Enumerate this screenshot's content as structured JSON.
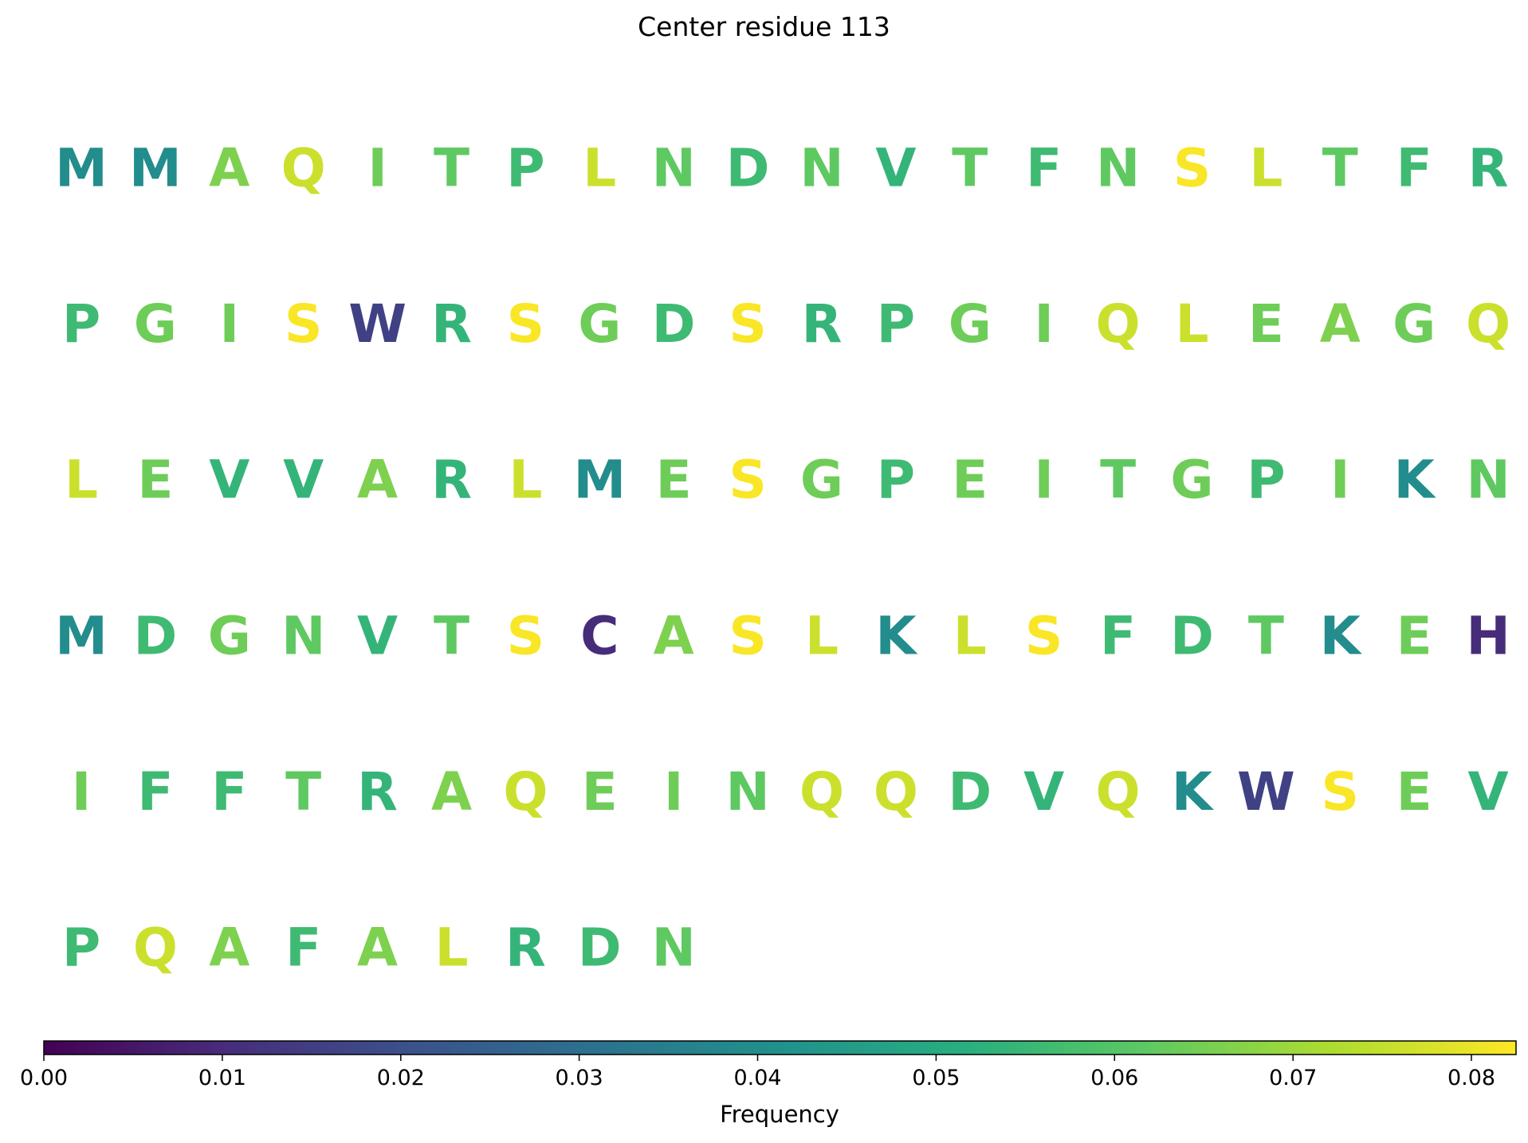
{
  "chart_data": {
    "type": "heatmap",
    "title": "Center residue 113",
    "letters": [
      {
        "letter": "M",
        "value": 0.04
      },
      {
        "letter": "M",
        "value": 0.04
      },
      {
        "letter": "A",
        "value": 0.066
      },
      {
        "letter": "Q",
        "value": 0.076
      },
      {
        "letter": "I",
        "value": 0.064
      },
      {
        "letter": "T",
        "value": 0.062
      },
      {
        "letter": "P",
        "value": 0.056
      },
      {
        "letter": "L",
        "value": 0.076
      },
      {
        "letter": "N",
        "value": 0.062
      },
      {
        "letter": "D",
        "value": 0.056
      },
      {
        "letter": "N",
        "value": 0.062
      },
      {
        "letter": "V",
        "value": 0.054
      },
      {
        "letter": "T",
        "value": 0.062
      },
      {
        "letter": "F",
        "value": 0.056
      },
      {
        "letter": "N",
        "value": 0.062
      },
      {
        "letter": "S",
        "value": 0.082
      },
      {
        "letter": "L",
        "value": 0.076
      },
      {
        "letter": "T",
        "value": 0.062
      },
      {
        "letter": "F",
        "value": 0.056
      },
      {
        "letter": "R",
        "value": 0.054
      },
      {
        "letter": "P",
        "value": 0.056
      },
      {
        "letter": "G",
        "value": 0.064
      },
      {
        "letter": "I",
        "value": 0.064
      },
      {
        "letter": "S",
        "value": 0.082
      },
      {
        "letter": "W",
        "value": 0.016
      },
      {
        "letter": "R",
        "value": 0.054
      },
      {
        "letter": "S",
        "value": 0.082
      },
      {
        "letter": "G",
        "value": 0.064
      },
      {
        "letter": "D",
        "value": 0.056
      },
      {
        "letter": "S",
        "value": 0.082
      },
      {
        "letter": "R",
        "value": 0.054
      },
      {
        "letter": "P",
        "value": 0.056
      },
      {
        "letter": "G",
        "value": 0.064
      },
      {
        "letter": "I",
        "value": 0.064
      },
      {
        "letter": "Q",
        "value": 0.076
      },
      {
        "letter": "L",
        "value": 0.076
      },
      {
        "letter": "E",
        "value": 0.064
      },
      {
        "letter": "A",
        "value": 0.066
      },
      {
        "letter": "G",
        "value": 0.064
      },
      {
        "letter": "Q",
        "value": 0.076
      },
      {
        "letter": "L",
        "value": 0.076
      },
      {
        "letter": "E",
        "value": 0.064
      },
      {
        "letter": "V",
        "value": 0.054
      },
      {
        "letter": "V",
        "value": 0.054
      },
      {
        "letter": "A",
        "value": 0.066
      },
      {
        "letter": "R",
        "value": 0.054
      },
      {
        "letter": "L",
        "value": 0.076
      },
      {
        "letter": "M",
        "value": 0.04
      },
      {
        "letter": "E",
        "value": 0.064
      },
      {
        "letter": "S",
        "value": 0.082
      },
      {
        "letter": "G",
        "value": 0.064
      },
      {
        "letter": "P",
        "value": 0.056
      },
      {
        "letter": "E",
        "value": 0.064
      },
      {
        "letter": "I",
        "value": 0.064
      },
      {
        "letter": "T",
        "value": 0.062
      },
      {
        "letter": "G",
        "value": 0.064
      },
      {
        "letter": "P",
        "value": 0.056
      },
      {
        "letter": "I",
        "value": 0.064
      },
      {
        "letter": "K",
        "value": 0.04
      },
      {
        "letter": "N",
        "value": 0.062
      },
      {
        "letter": "M",
        "value": 0.04
      },
      {
        "letter": "D",
        "value": 0.056
      },
      {
        "letter": "G",
        "value": 0.064
      },
      {
        "letter": "N",
        "value": 0.062
      },
      {
        "letter": "V",
        "value": 0.054
      },
      {
        "letter": "T",
        "value": 0.062
      },
      {
        "letter": "S",
        "value": 0.082
      },
      {
        "letter": "C",
        "value": 0.01
      },
      {
        "letter": "A",
        "value": 0.066
      },
      {
        "letter": "S",
        "value": 0.082
      },
      {
        "letter": "L",
        "value": 0.076
      },
      {
        "letter": "K",
        "value": 0.04
      },
      {
        "letter": "L",
        "value": 0.076
      },
      {
        "letter": "S",
        "value": 0.082
      },
      {
        "letter": "F",
        "value": 0.056
      },
      {
        "letter": "D",
        "value": 0.056
      },
      {
        "letter": "T",
        "value": 0.062
      },
      {
        "letter": "K",
        "value": 0.04
      },
      {
        "letter": "E",
        "value": 0.064
      },
      {
        "letter": "H",
        "value": 0.01
      },
      {
        "letter": "I",
        "value": 0.064
      },
      {
        "letter": "F",
        "value": 0.056
      },
      {
        "letter": "F",
        "value": 0.056
      },
      {
        "letter": "T",
        "value": 0.062
      },
      {
        "letter": "R",
        "value": 0.054
      },
      {
        "letter": "A",
        "value": 0.066
      },
      {
        "letter": "Q",
        "value": 0.076
      },
      {
        "letter": "E",
        "value": 0.064
      },
      {
        "letter": "I",
        "value": 0.064
      },
      {
        "letter": "N",
        "value": 0.062
      },
      {
        "letter": "Q",
        "value": 0.076
      },
      {
        "letter": "Q",
        "value": 0.076
      },
      {
        "letter": "D",
        "value": 0.056
      },
      {
        "letter": "V",
        "value": 0.054
      },
      {
        "letter": "Q",
        "value": 0.076
      },
      {
        "letter": "K",
        "value": 0.04
      },
      {
        "letter": "W",
        "value": 0.016
      },
      {
        "letter": "S",
        "value": 0.082
      },
      {
        "letter": "E",
        "value": 0.064
      },
      {
        "letter": "V",
        "value": 0.054
      },
      {
        "letter": "P",
        "value": 0.056
      },
      {
        "letter": "Q",
        "value": 0.076
      },
      {
        "letter": "A",
        "value": 0.066
      },
      {
        "letter": "F",
        "value": 0.056
      },
      {
        "letter": "A",
        "value": 0.066
      },
      {
        "letter": "L",
        "value": 0.076
      },
      {
        "letter": "R",
        "value": 0.054
      },
      {
        "letter": "D",
        "value": 0.056
      },
      {
        "letter": "N",
        "value": 0.062
      }
    ],
    "letters_per_row": 20,
    "colormap": "viridis",
    "colorbar": {
      "label": "Frequency",
      "range": [
        0,
        0.0825
      ],
      "ticks": [
        "0.00",
        "0.01",
        "0.02",
        "0.03",
        "0.04",
        "0.05",
        "0.06",
        "0.07",
        "0.08"
      ],
      "orientation": "horizontal",
      "placement": "bottom"
    }
  }
}
